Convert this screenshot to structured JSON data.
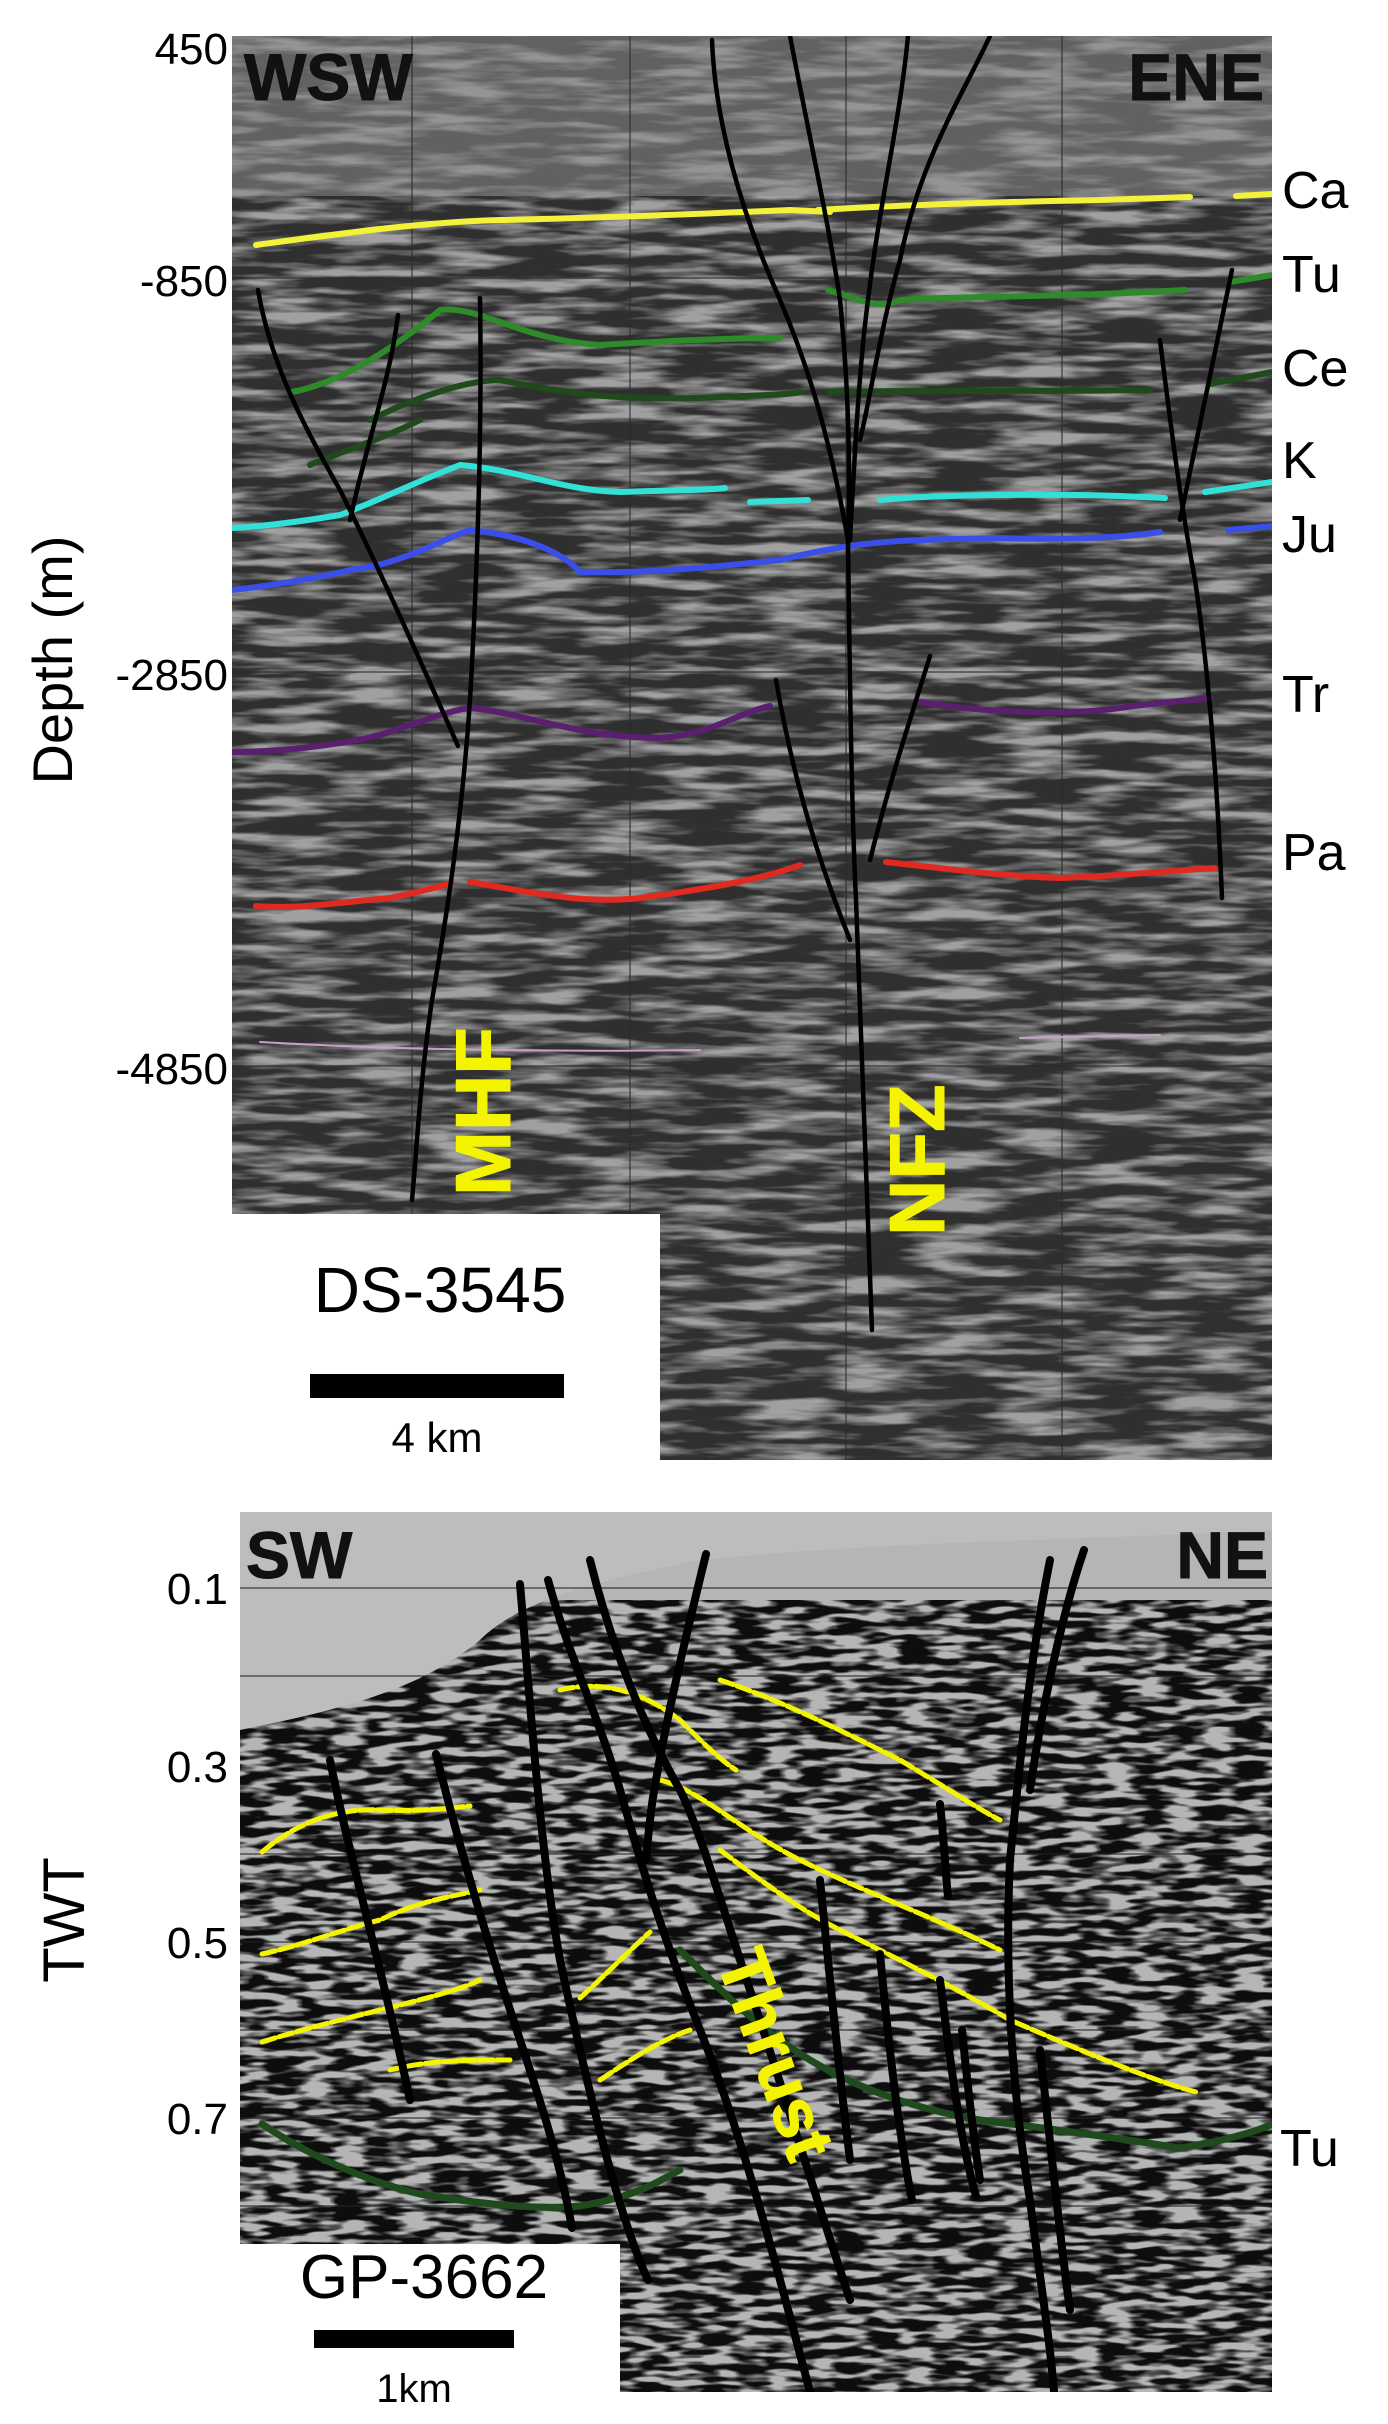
{
  "top_section": {
    "line_name": "DS-3545",
    "orientation": {
      "left": "WSW",
      "right": "ENE"
    },
    "y_axis_label": "Depth (m)",
    "y_ticks": [
      "450",
      "-850",
      "-2850",
      "-4850"
    ],
    "horizons": [
      {
        "label": "Ca",
        "color": "#f2f23a"
      },
      {
        "label": "Tu",
        "color": "#2f8a2a"
      },
      {
        "label": "Ce",
        "color": "#1f4a1c"
      },
      {
        "label": "K",
        "color": "#33e0d8"
      },
      {
        "label": "Ju",
        "color": "#3a4fe8"
      },
      {
        "label": "Tr",
        "color": "#5a1f6e"
      },
      {
        "label": "Pa",
        "color": "#e02a20"
      }
    ],
    "faults": [
      "MHF",
      "NFZ"
    ],
    "scale_bar": "4 km"
  },
  "bottom_section": {
    "line_name": "GP-3662",
    "orientation": {
      "left": "SW",
      "right": "NE"
    },
    "y_axis_label": "TWT",
    "y_ticks": [
      "0.1",
      "0.3",
      "0.5",
      "0.7"
    ],
    "horizons": [
      {
        "label": "Tu",
        "color": "#1f4a1c"
      }
    ],
    "fault_label": "Thrust",
    "scale_bar": "1km"
  },
  "colors": {
    "seismic_bg": "#9a9a9a",
    "fault": "#000000",
    "fault_label": "#f4f400",
    "horizon_yellow": "#f4f400"
  }
}
